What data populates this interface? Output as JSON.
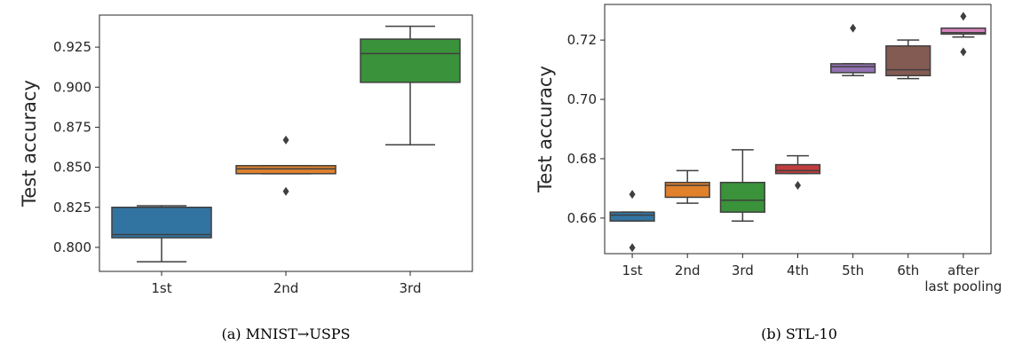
{
  "chart_data": [
    {
      "type": "box",
      "caption": "(a) MNIST→USPS",
      "ylabel": "Test accuracy",
      "ylim": [
        0.785,
        0.945
      ],
      "yticks": [
        0.8,
        0.825,
        0.85,
        0.875,
        0.9,
        0.925
      ],
      "categories": [
        "1st",
        "2nd",
        "3rd"
      ],
      "boxes": [
        {
          "label": "1st",
          "whislo": 0.791,
          "q1": 0.806,
          "med": 0.808,
          "q3": 0.825,
          "whishi": 0.826,
          "fliers": [],
          "color": "#3274a1"
        },
        {
          "label": "2nd",
          "whislo": 0.846,
          "q1": 0.846,
          "med": 0.849,
          "q3": 0.851,
          "whishi": 0.851,
          "fliers": [
            0.867,
            0.835
          ],
          "color": "#e1812c"
        },
        {
          "label": "3rd",
          "whislo": 0.864,
          "q1": 0.903,
          "med": 0.921,
          "q3": 0.93,
          "whishi": 0.938,
          "fliers": [],
          "color": "#3a923a"
        }
      ]
    },
    {
      "type": "box",
      "caption": "(b) STL-10",
      "ylabel": "Test accuracy",
      "ylim": [
        0.648,
        0.732
      ],
      "yticks": [
        0.66,
        0.68,
        0.7,
        0.72
      ],
      "categories": [
        "1st",
        "2nd",
        "3rd",
        "4th",
        "5th",
        "6th",
        "after last pooling"
      ],
      "boxes": [
        {
          "label": "1st",
          "whislo": 0.659,
          "q1": 0.659,
          "med": 0.661,
          "q3": 0.662,
          "whishi": 0.662,
          "fliers": [
            0.668,
            0.65
          ],
          "color": "#3274a1"
        },
        {
          "label": "2nd",
          "whislo": 0.665,
          "q1": 0.667,
          "med": 0.671,
          "q3": 0.672,
          "whishi": 0.676,
          "fliers": [],
          "color": "#e1812c"
        },
        {
          "label": "3rd",
          "whislo": 0.659,
          "q1": 0.662,
          "med": 0.666,
          "q3": 0.672,
          "whishi": 0.683,
          "fliers": [],
          "color": "#3a923a"
        },
        {
          "label": "4th",
          "whislo": 0.675,
          "q1": 0.675,
          "med": 0.676,
          "q3": 0.678,
          "whishi": 0.681,
          "fliers": [
            0.671
          ],
          "color": "#c03d3e"
        },
        {
          "label": "5th",
          "whislo": 0.708,
          "q1": 0.709,
          "med": 0.711,
          "q3": 0.712,
          "whishi": 0.712,
          "fliers": [
            0.724
          ],
          "color": "#9372b2"
        },
        {
          "label": "6th",
          "whislo": 0.707,
          "q1": 0.708,
          "med": 0.71,
          "q3": 0.718,
          "whishi": 0.72,
          "fliers": [],
          "color": "#845b53"
        },
        {
          "label": "after last pooling",
          "whislo": 0.721,
          "q1": 0.722,
          "med": 0.7225,
          "q3": 0.724,
          "whishi": 0.724,
          "fliers": [
            0.728,
            0.716
          ],
          "color": "#d684bd"
        }
      ]
    }
  ]
}
